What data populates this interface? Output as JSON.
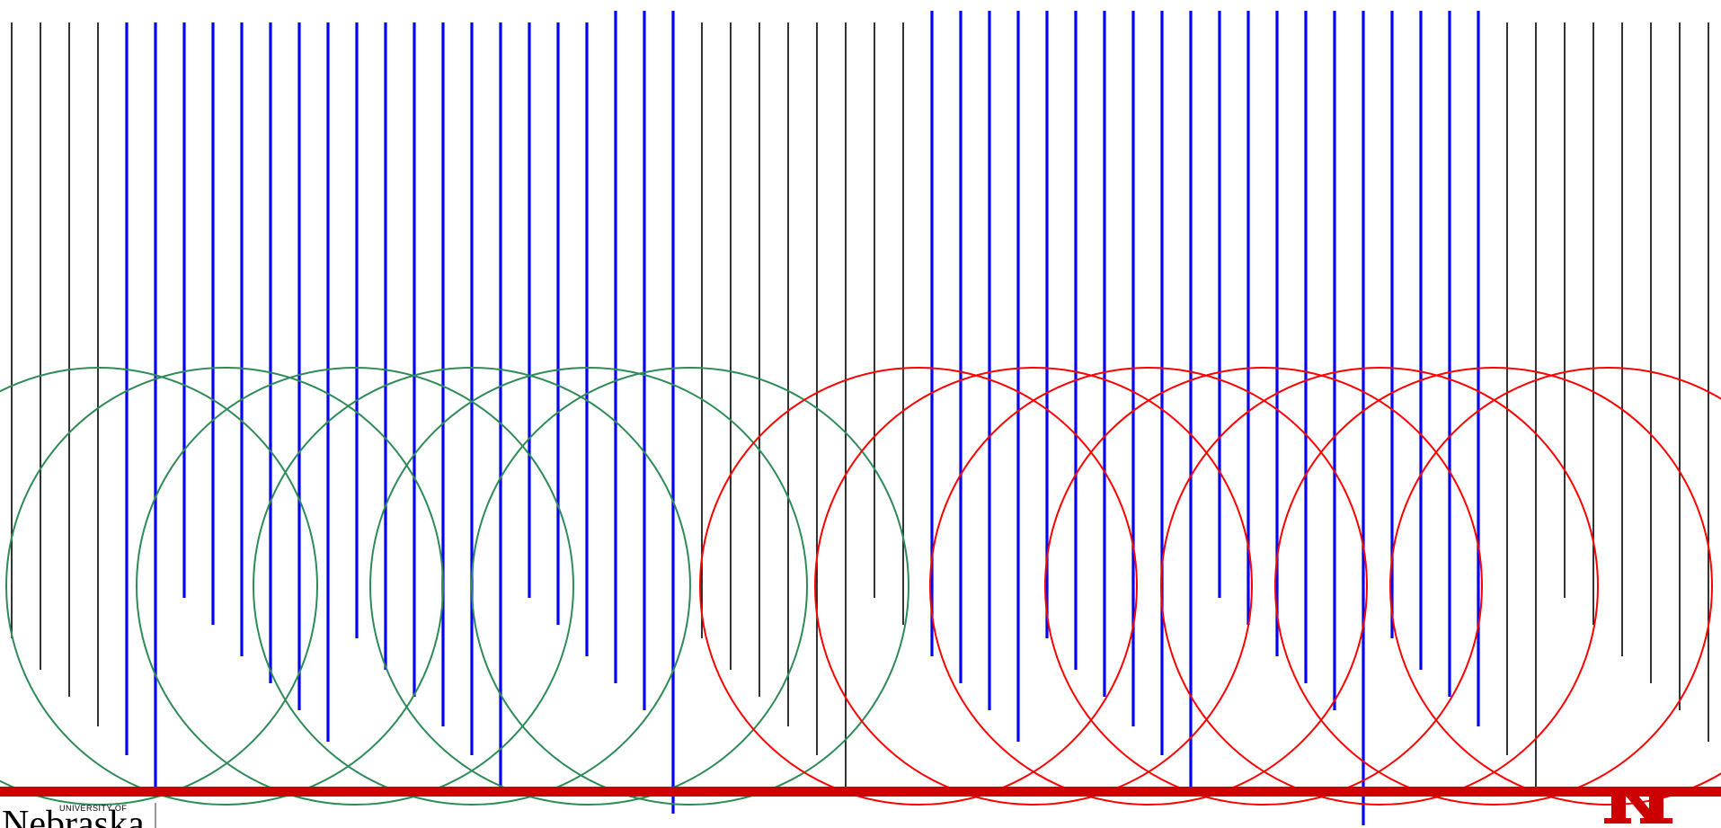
{
  "slide": {
    "background": "#ffffff",
    "colors": {
      "black_line": "#000000",
      "blue_line": "#0000ee",
      "green_circle": "#2e8b57",
      "red_circle": "#ff0000",
      "accent_bar": "#cc0000"
    }
  },
  "footer": {
    "wordmark_top": "UNIVERSITY",
    "wordmark_of": "OF",
    "wordmark_name": "Nebraska",
    "logo_icon": "n-monogram-icon"
  }
}
